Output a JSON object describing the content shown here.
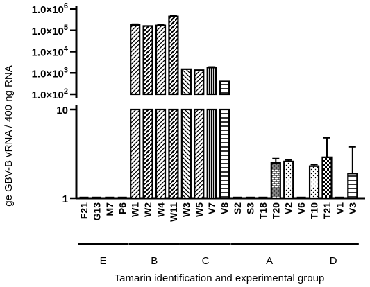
{
  "chart_data": {
    "type": "bar",
    "xlabel": "Tamarin identification and experimental group",
    "ylabel": "ge GBV-B vRNA / 400 ng RNA",
    "y_scale": "log",
    "y_axis_break": true,
    "upper_segment": {
      "ylim": [
        100,
        1000000
      ],
      "ticks": [
        {
          "value": 1000000,
          "base": "1.0×10",
          "exp": "6"
        },
        {
          "value": 100000,
          "base": "1.0×10",
          "exp": "5"
        },
        {
          "value": 10000,
          "base": "1.0×10",
          "exp": "4"
        },
        {
          "value": 1000,
          "base": "1.0×10",
          "exp": "3"
        },
        {
          "value": 100,
          "base": "1.0×10",
          "exp": "2"
        }
      ]
    },
    "lower_segment": {
      "ylim": [
        1,
        10
      ],
      "ticks": [
        {
          "value": 10,
          "label": "10"
        },
        {
          "value": 1,
          "label": "1"
        }
      ]
    },
    "groups": [
      {
        "name": "E",
        "categories": [
          "F21",
          "G13",
          "M7",
          "P6"
        ],
        "values": [
          1,
          1,
          1,
          1
        ],
        "errors": [
          0,
          0,
          0,
          0
        ]
      },
      {
        "name": "B",
        "categories": [
          "W1",
          "W2",
          "W4",
          "W11"
        ],
        "values": [
          180000,
          160000,
          170000,
          450000
        ],
        "errors": [
          15000,
          0,
          15000,
          40000
        ]
      },
      {
        "name": "C",
        "categories": [
          "W3",
          "W5",
          "V7",
          "V8"
        ],
        "values": [
          1500,
          1350,
          1800,
          400
        ],
        "errors": [
          0,
          0,
          120,
          0
        ]
      },
      {
        "name": "A",
        "categories": [
          "S2",
          "S3",
          "T18",
          "T20",
          "V2",
          "V6"
        ],
        "values": [
          1,
          1,
          1,
          2.5,
          2.6,
          1
        ],
        "errors": [
          0,
          0,
          0,
          0.3,
          0.1,
          0
        ]
      },
      {
        "name": "D",
        "categories": [
          "T10",
          "T21",
          "V1",
          "V3"
        ],
        "values": [
          2.3,
          2.9,
          1,
          1.9
        ],
        "errors": [
          0.1,
          1.9,
          0,
          1.9
        ]
      }
    ],
    "legend": "none",
    "grid": false
  }
}
